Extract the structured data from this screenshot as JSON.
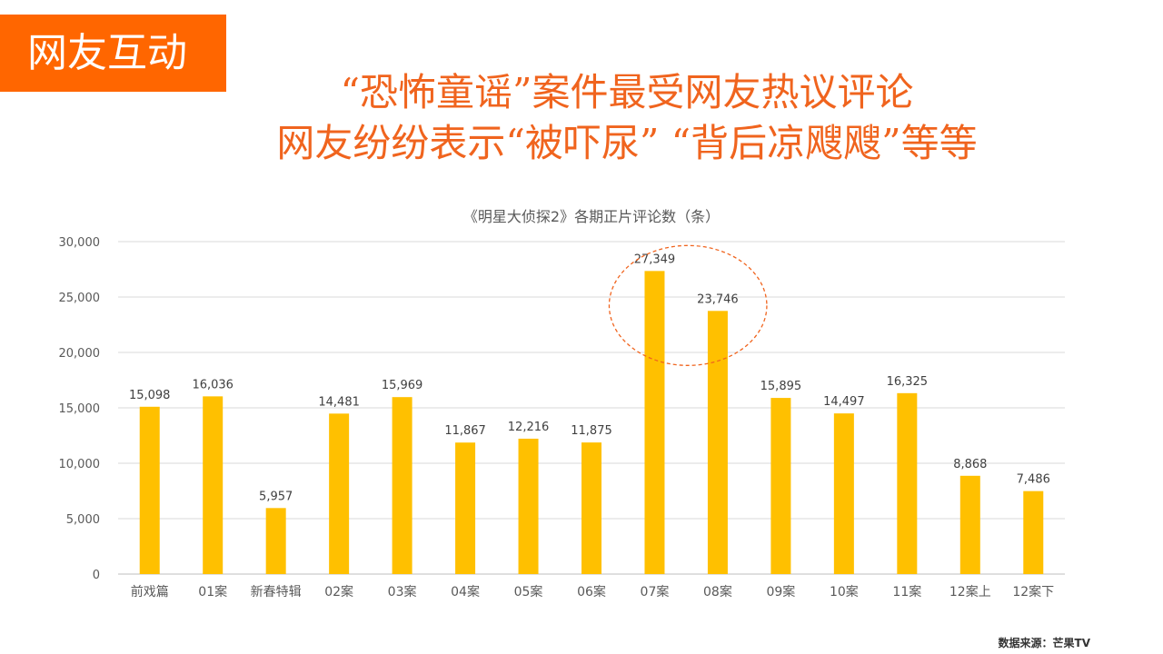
{
  "section_badge": "网友互动",
  "headline": {
    "line1": "“恐怖童谣”案件最受网友热议评论",
    "line2": "网友纷纷表示“被吓尿” “背后凉飕飕”等等"
  },
  "source_note": "数据来源：芒果TV",
  "colors": {
    "bar": "#ffc000",
    "accent": "#ff6600",
    "headline": "#f0641e",
    "grid": "#d9d9d9",
    "text": "#595959",
    "highlight_ellipse": "#f0641e"
  },
  "chart_data": {
    "type": "bar",
    "title": "《明星大侦探2》各期正片评论数（条）",
    "categories": [
      "前戏篇",
      "01案",
      "新春特辑",
      "02案",
      "03案",
      "04案",
      "05案",
      "06案",
      "07案",
      "08案",
      "09案",
      "10案",
      "11案",
      "12案上",
      "12案下"
    ],
    "values": [
      15098,
      16036,
      5957,
      14481,
      15969,
      11867,
      12216,
      11875,
      27349,
      23746,
      15895,
      14497,
      16325,
      8868,
      7486
    ],
    "value_labels": [
      "15,098",
      "16,036",
      "5,957",
      "14,481",
      "15,969",
      "11,867",
      "12,216",
      "11,875",
      "27,349",
      "23,746",
      "15,895",
      "14,497",
      "16,325",
      "8,868",
      "7,486"
    ],
    "ylim": [
      0,
      30000
    ],
    "yticks": [
      0,
      5000,
      10000,
      15000,
      20000,
      25000,
      30000
    ],
    "ytick_labels": [
      "0",
      "5,000",
      "10,000",
      "15,000",
      "20,000",
      "25,000",
      "30,000"
    ],
    "xlabel": "",
    "ylabel": "",
    "grid": true,
    "legend": "none",
    "highlighted_categories": [
      "07案",
      "08案"
    ]
  }
}
